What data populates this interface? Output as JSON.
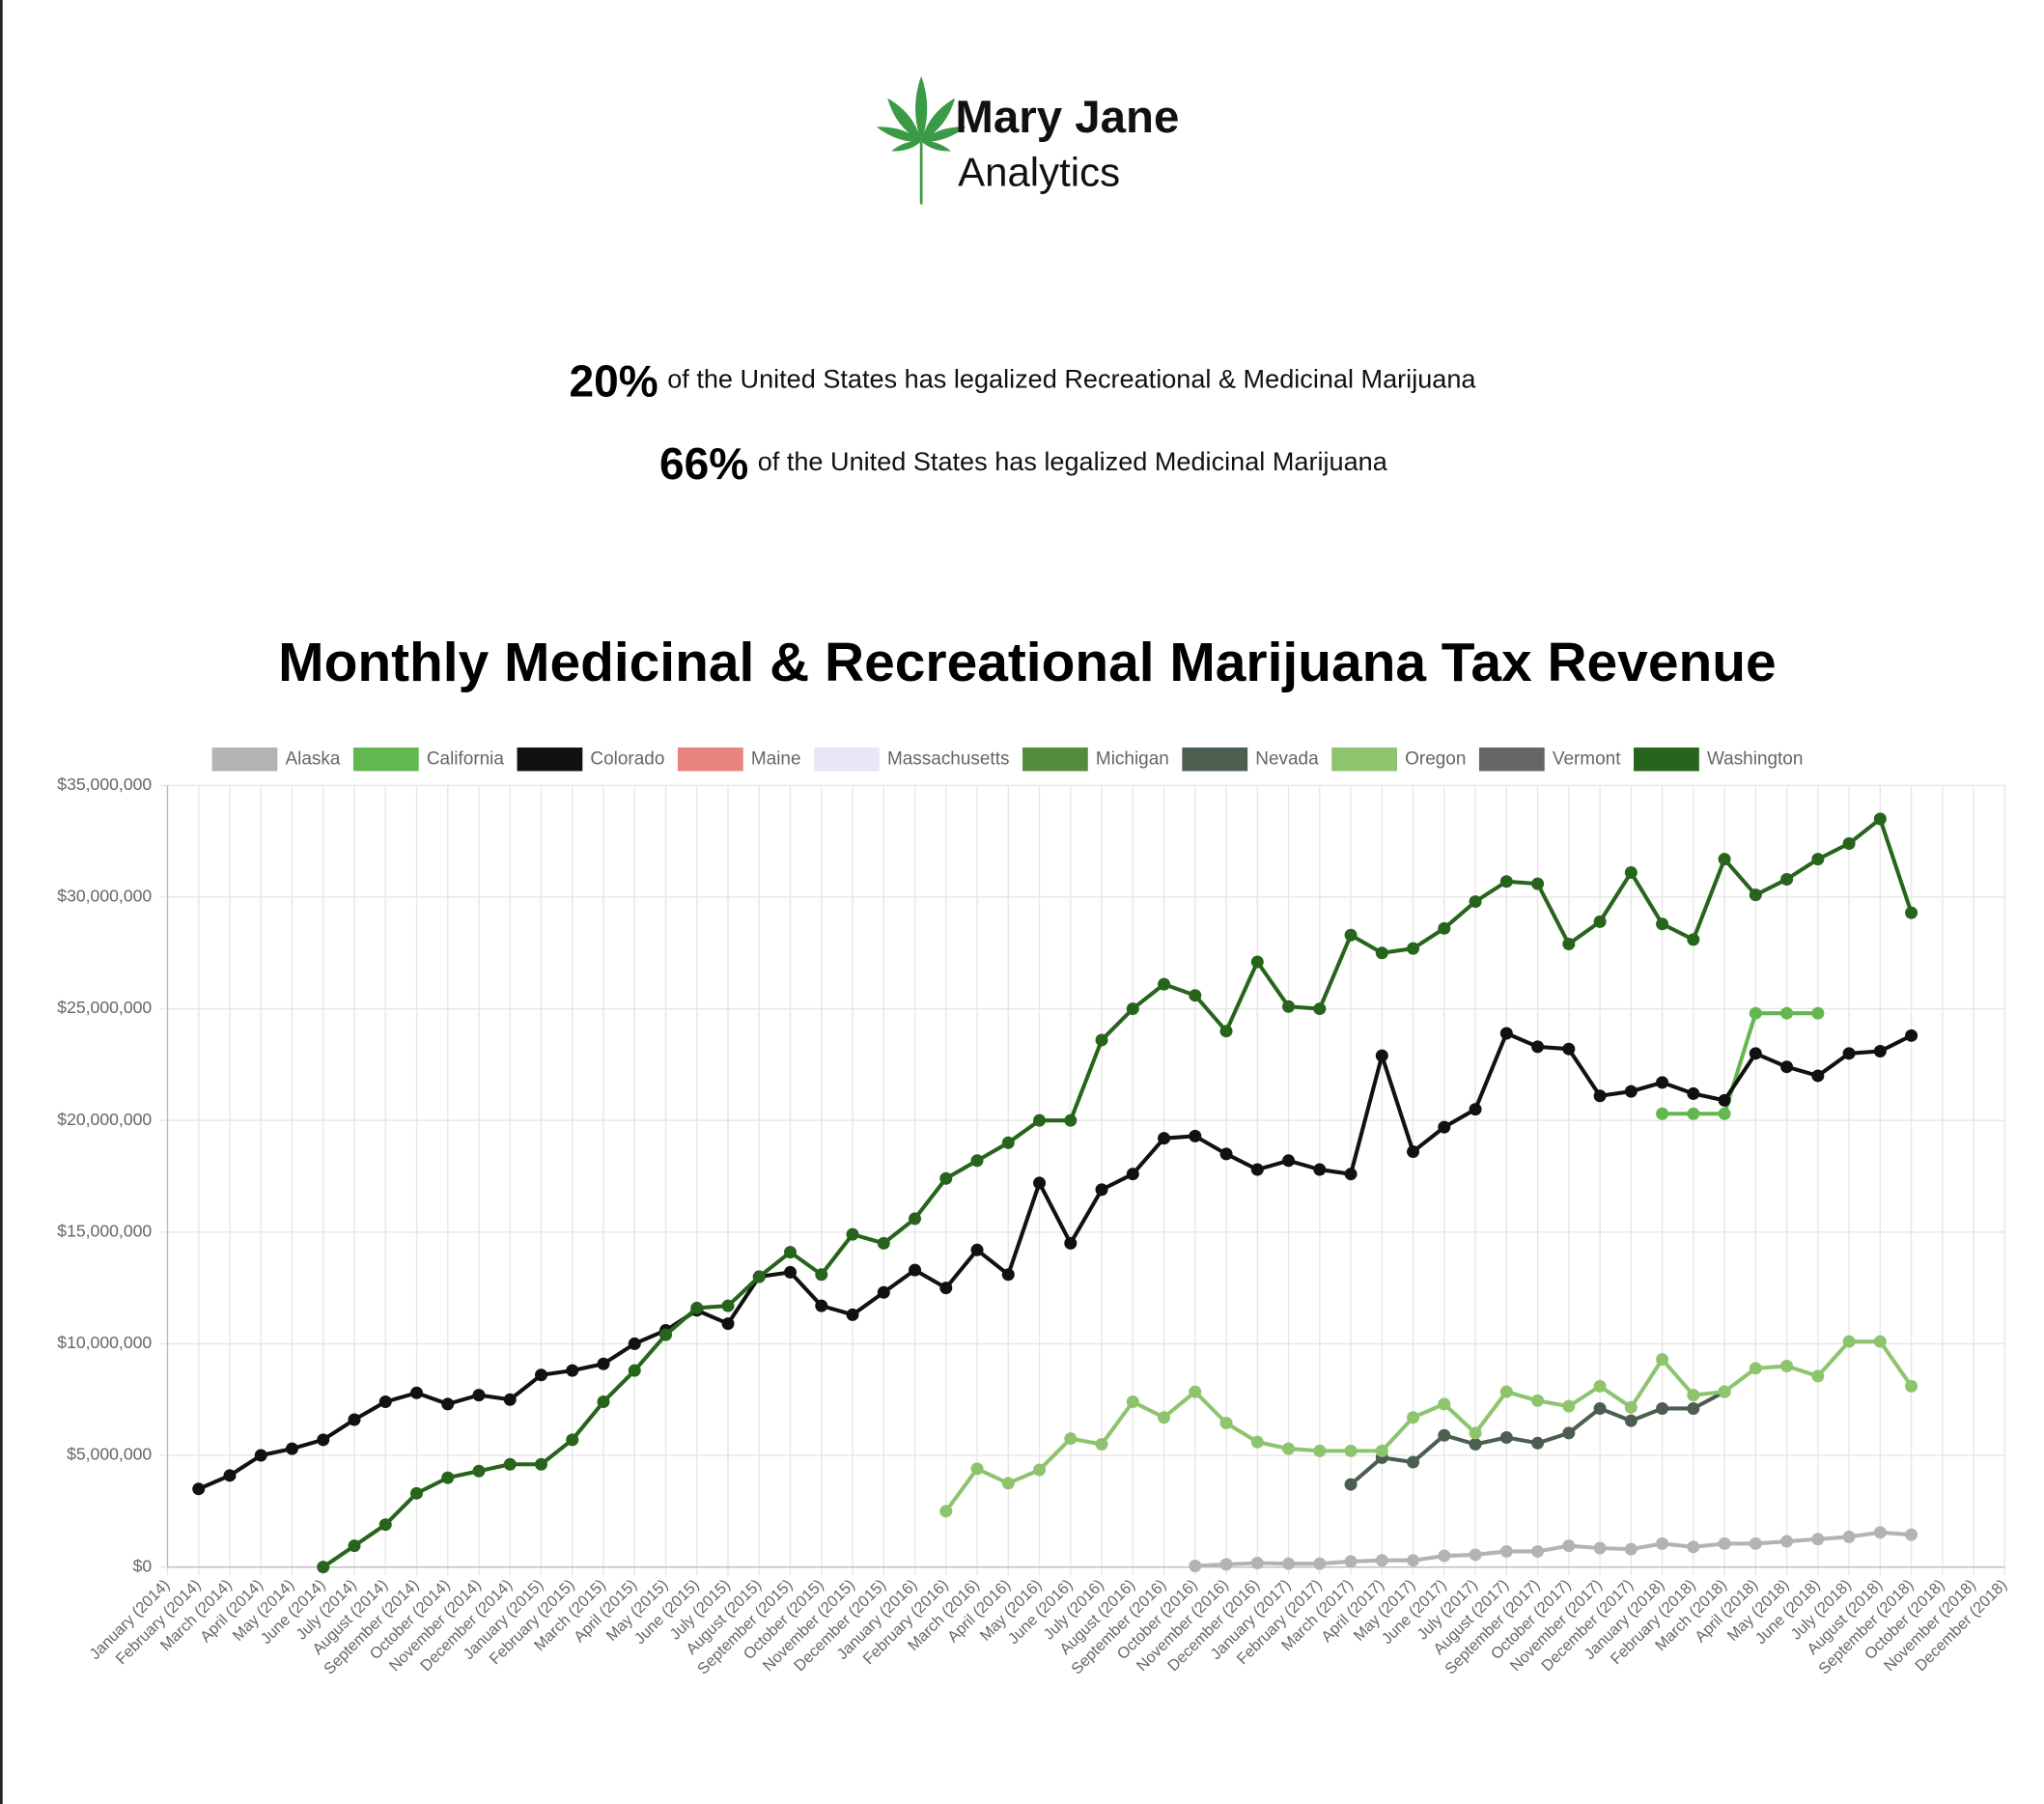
{
  "header": {
    "brand": "Mary Jane",
    "subbrand": "Analytics"
  },
  "stats": [
    {
      "value": "20%",
      "text": "of the United States has legalized Recreational & Medicinal Marijuana"
    },
    {
      "value": "66%",
      "text": "of the United States has legalized Medicinal Marijuana"
    }
  ],
  "chart_data": {
    "type": "line",
    "title": "Monthly Medicinal & Recreational Marijuana Tax Revenue",
    "categories": [
      "January (2014)",
      "February (2014)",
      "March (2014)",
      "April (2014)",
      "May (2014)",
      "June (2014)",
      "July (2014)",
      "August (2014)",
      "September (2014)",
      "October (2014)",
      "November (2014)",
      "December (2014)",
      "January (2015)",
      "February (2015)",
      "March (2015)",
      "April (2015)",
      "May (2015)",
      "June (2015)",
      "July (2015)",
      "August (2015)",
      "September (2015)",
      "October (2015)",
      "November (2015)",
      "December (2015)",
      "January (2016)",
      "February (2016)",
      "March (2016)",
      "April (2016)",
      "May (2016)",
      "June (2016)",
      "July (2016)",
      "August (2016)",
      "September (2016)",
      "October (2016)",
      "November (2016)",
      "December (2016)",
      "January (2017)",
      "February (2017)",
      "March (2017)",
      "April (2017)",
      "May (2017)",
      "June (2017)",
      "July (2017)",
      "August (2017)",
      "September (2017)",
      "October (2017)",
      "November (2017)",
      "December (2017)",
      "January (2018)",
      "February (2018)",
      "March (2018)",
      "April (2018)",
      "May (2018)",
      "June (2018)",
      "July (2018)",
      "August (2018)",
      "September (2018)",
      "October (2018)",
      "November (2018)",
      "December (2018)"
    ],
    "ylim": [
      0,
      35000000
    ],
    "yticks": [
      {
        "value": 0,
        "label": "$0"
      },
      {
        "value": 5000000,
        "label": "$5,000,000"
      },
      {
        "value": 10000000,
        "label": "$10,000,000"
      },
      {
        "value": 15000000,
        "label": "$15,000,000"
      },
      {
        "value": 20000000,
        "label": "$20,000,000"
      },
      {
        "value": 25000000,
        "label": "$25,000,000"
      },
      {
        "value": 30000000,
        "label": "$30,000,000"
      },
      {
        "value": 35000000,
        "label": "$35,000,000"
      }
    ],
    "grid": true,
    "legend": "top",
    "series": [
      {
        "name": "Alaska",
        "color": "#b3b3b3",
        "values": [
          null,
          null,
          null,
          null,
          null,
          null,
          null,
          null,
          null,
          null,
          null,
          null,
          null,
          null,
          null,
          null,
          null,
          null,
          null,
          null,
          null,
          null,
          null,
          null,
          null,
          null,
          null,
          null,
          null,
          null,
          null,
          null,
          null,
          50000,
          120000,
          180000,
          150000,
          150000,
          250000,
          300000,
          300000,
          500000,
          550000,
          700000,
          700000,
          950000,
          850000,
          800000,
          1050000,
          900000,
          1050000,
          1050000,
          1150000,
          1250000,
          1350000,
          1550000,
          1450000,
          null,
          null,
          null
        ]
      },
      {
        "name": "California",
        "color": "#62b74f",
        "values": [
          null,
          null,
          null,
          null,
          null,
          null,
          null,
          null,
          null,
          null,
          null,
          null,
          null,
          null,
          null,
          null,
          null,
          null,
          null,
          null,
          null,
          null,
          null,
          null,
          null,
          null,
          null,
          null,
          null,
          null,
          null,
          null,
          null,
          null,
          null,
          null,
          null,
          null,
          null,
          null,
          null,
          null,
          null,
          null,
          null,
          null,
          null,
          null,
          20300000,
          20300000,
          20300000,
          24800000,
          24800000,
          24800000,
          null,
          null,
          null,
          null,
          null,
          null
        ]
      },
      {
        "name": "Colorado",
        "color": "#111111",
        "values": [
          null,
          3500000,
          4100000,
          5000000,
          5300000,
          5700000,
          6600000,
          7400000,
          7800000,
          7300000,
          7700000,
          7500000,
          8600000,
          8800000,
          9100000,
          10000000,
          10600000,
          11500000,
          10900000,
          13000000,
          13200000,
          11700000,
          11300000,
          12300000,
          13300000,
          12500000,
          14200000,
          13100000,
          17200000,
          14500000,
          16900000,
          17600000,
          19200000,
          19300000,
          18500000,
          17800000,
          18200000,
          17800000,
          17600000,
          22900000,
          18600000,
          19700000,
          20500000,
          23900000,
          23300000,
          23200000,
          21100000,
          21300000,
          21700000,
          21200000,
          20900000,
          23000000,
          22400000,
          22000000,
          23000000,
          23100000,
          23800000,
          null,
          null,
          null
        ]
      },
      {
        "name": "Maine",
        "color": "#e8837e",
        "values": [
          null,
          null,
          null,
          null,
          null,
          null,
          null,
          null,
          null,
          null,
          null,
          null,
          null,
          null,
          null,
          null,
          null,
          null,
          null,
          null,
          null,
          null,
          null,
          null,
          null,
          null,
          null,
          null,
          null,
          null,
          null,
          null,
          null,
          null,
          null,
          null,
          null,
          null,
          null,
          null,
          null,
          null,
          null,
          null,
          null,
          null,
          null,
          null,
          null,
          null,
          null,
          null,
          null,
          null,
          null,
          null,
          null,
          null,
          null,
          null
        ]
      },
      {
        "name": "Massachusetts",
        "color": "#e6e6f5",
        "values": [
          null,
          null,
          null,
          null,
          null,
          null,
          null,
          null,
          null,
          null,
          null,
          null,
          null,
          null,
          null,
          null,
          null,
          null,
          null,
          null,
          null,
          null,
          null,
          null,
          null,
          null,
          null,
          null,
          null,
          null,
          null,
          null,
          null,
          null,
          null,
          null,
          null,
          null,
          null,
          null,
          null,
          null,
          null,
          null,
          null,
          null,
          null,
          null,
          null,
          null,
          null,
          null,
          null,
          null,
          null,
          null,
          null,
          null,
          null,
          null
        ]
      },
      {
        "name": "Michigan",
        "color": "#548c3f",
        "values": [
          null,
          null,
          null,
          null,
          null,
          null,
          null,
          null,
          null,
          null,
          null,
          null,
          null,
          null,
          null,
          null,
          null,
          null,
          null,
          null,
          null,
          null,
          null,
          null,
          null,
          null,
          null,
          null,
          null,
          null,
          null,
          null,
          null,
          null,
          null,
          null,
          null,
          null,
          null,
          null,
          null,
          null,
          null,
          null,
          null,
          null,
          null,
          null,
          null,
          null,
          null,
          null,
          null,
          null,
          null,
          null,
          null,
          null,
          null,
          null
        ]
      },
      {
        "name": "Nevada",
        "color": "#4b5e50",
        "values": [
          null,
          null,
          null,
          null,
          null,
          null,
          null,
          null,
          null,
          null,
          null,
          null,
          null,
          null,
          null,
          null,
          null,
          null,
          null,
          null,
          null,
          null,
          null,
          null,
          null,
          null,
          null,
          null,
          null,
          null,
          null,
          null,
          null,
          null,
          null,
          null,
          null,
          null,
          3700000,
          4900000,
          4700000,
          5900000,
          5500000,
          5800000,
          5550000,
          6000000,
          7100000,
          6550000,
          7100000,
          7100000,
          7850000,
          null,
          null,
          null,
          null,
          null,
          null,
          null,
          null,
          null
        ]
      },
      {
        "name": "Oregon",
        "color": "#8ec46e",
        "values": [
          null,
          null,
          null,
          null,
          null,
          null,
          null,
          null,
          null,
          null,
          null,
          null,
          null,
          null,
          null,
          null,
          null,
          null,
          null,
          null,
          null,
          null,
          null,
          null,
          null,
          2500000,
          4400000,
          3750000,
          4350000,
          5750000,
          5500000,
          7400000,
          6700000,
          7850000,
          6450000,
          5600000,
          5300000,
          5200000,
          5200000,
          5200000,
          6700000,
          7300000,
          6000000,
          7850000,
          7450000,
          7200000,
          8100000,
          7150000,
          9300000,
          7700000,
          7850000,
          8900000,
          9000000,
          8550000,
          10100000,
          10100000,
          8100000,
          null,
          null,
          null
        ]
      },
      {
        "name": "Vermont",
        "color": "#666666",
        "values": [
          null,
          null,
          null,
          null,
          null,
          null,
          null,
          null,
          null,
          null,
          null,
          null,
          null,
          null,
          null,
          null,
          null,
          null,
          null,
          null,
          null,
          null,
          null,
          null,
          null,
          null,
          null,
          null,
          null,
          null,
          null,
          null,
          null,
          null,
          null,
          null,
          null,
          null,
          null,
          null,
          null,
          null,
          null,
          null,
          null,
          null,
          null,
          null,
          null,
          null,
          null,
          null,
          null,
          null,
          null,
          null,
          null,
          null,
          null,
          null
        ]
      },
      {
        "name": "Washington",
        "color": "#27641c",
        "values": [
          null,
          null,
          null,
          null,
          null,
          0,
          950000,
          1900000,
          3300000,
          4000000,
          4300000,
          4600000,
          4600000,
          5700000,
          7400000,
          8800000,
          10400000,
          11600000,
          11700000,
          13000000,
          14100000,
          13100000,
          14900000,
          14500000,
          15600000,
          17400000,
          18200000,
          19000000,
          20000000,
          20000000,
          23600000,
          25000000,
          26100000,
          25600000,
          24000000,
          27100000,
          25100000,
          25000000,
          28300000,
          27500000,
          27700000,
          28600000,
          29800000,
          30700000,
          30600000,
          27900000,
          28900000,
          31100000,
          28800000,
          28100000,
          31700000,
          30100000,
          30800000,
          31700000,
          32400000,
          33500000,
          29300000,
          null,
          null,
          null
        ]
      }
    ]
  }
}
